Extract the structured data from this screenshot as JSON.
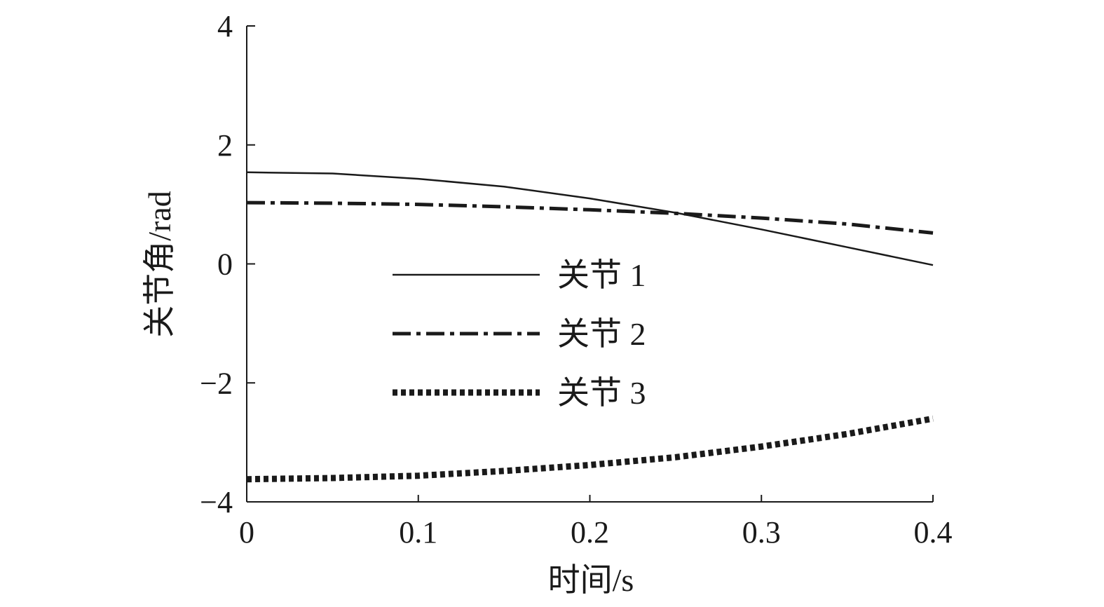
{
  "chart_data": {
    "type": "line",
    "xlabel": "时间/s",
    "ylabel": "关节角/rad",
    "xlim": [
      0,
      0.4
    ],
    "ylim": [
      -4,
      4
    ],
    "x_ticks": [
      0,
      0.1,
      0.2,
      0.3,
      0.4
    ],
    "x_tick_labels": [
      "0",
      "0.1",
      "0.2",
      "0.3",
      "0.4"
    ],
    "y_ticks": [
      -4,
      -2,
      0,
      2,
      4
    ],
    "y_tick_labels": [
      "−4",
      "−2",
      "0",
      "2",
      "4"
    ],
    "grid": false,
    "legend_position": "center",
    "series": [
      {
        "name": "关节 1",
        "style": "solid",
        "color": "#1a1a1a",
        "x": [
          0,
          0.05,
          0.1,
          0.15,
          0.2,
          0.25,
          0.3,
          0.35,
          0.4
        ],
        "y": [
          1.54,
          1.52,
          1.43,
          1.3,
          1.1,
          0.86,
          0.58,
          0.28,
          -0.02
        ]
      },
      {
        "name": "关节 2",
        "style": "dashdot",
        "color": "#1a1a1a",
        "x": [
          0,
          0.05,
          0.1,
          0.15,
          0.2,
          0.25,
          0.3,
          0.35,
          0.4
        ],
        "y": [
          1.03,
          1.02,
          1.0,
          0.96,
          0.91,
          0.85,
          0.77,
          0.67,
          0.52
        ]
      },
      {
        "name": "关节 3",
        "style": "dotted",
        "color": "#1a1a1a",
        "x": [
          0,
          0.05,
          0.1,
          0.15,
          0.2,
          0.25,
          0.3,
          0.35,
          0.4
        ],
        "y": [
          -3.62,
          -3.6,
          -3.56,
          -3.48,
          -3.38,
          -3.25,
          -3.07,
          -2.86,
          -2.6
        ]
      }
    ]
  }
}
